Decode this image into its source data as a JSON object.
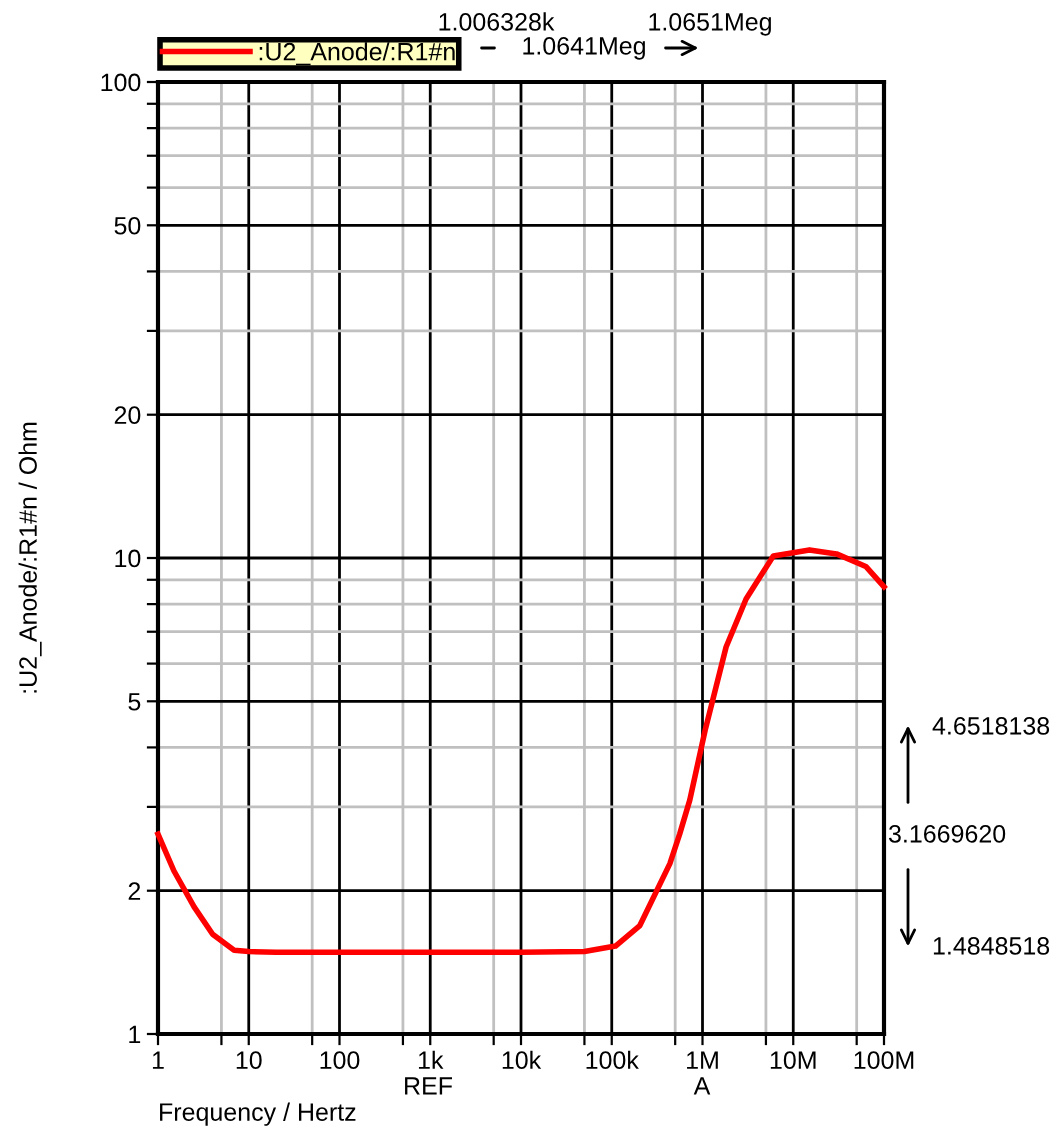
{
  "chart_data": {
    "type": "line",
    "xlabel": "Frequency / Hertz",
    "ylabel": ":U2_Anode/:R1#n / Ohm",
    "log": "xy",
    "grid": true,
    "legend": "top left",
    "marker": "none",
    "line_style": "solid",
    "xlim": [
      1,
      100000000
    ],
    "ylim": [
      1,
      100
    ],
    "xticks": [
      {
        "value": 1,
        "label": "1"
      },
      {
        "value": 5,
        "label": null
      },
      {
        "value": 10,
        "label": "10"
      },
      {
        "value": 50,
        "label": null
      },
      {
        "value": 100,
        "label": "100"
      },
      {
        "value": 500,
        "label": null
      },
      {
        "value": 1000,
        "label": "1k"
      },
      {
        "value": 5000,
        "label": null
      },
      {
        "value": 10000,
        "label": "10k"
      },
      {
        "value": 50000,
        "label": null
      },
      {
        "value": 100000,
        "label": "100k"
      },
      {
        "value": 500000,
        "label": null
      },
      {
        "value": 1000000,
        "label": "1M"
      },
      {
        "value": 5000000,
        "label": null
      },
      {
        "value": 10000000,
        "label": "10M"
      },
      {
        "value": 50000000,
        "label": null
      },
      {
        "value": 100000000,
        "label": "100M"
      }
    ],
    "yticks": [
      1,
      2,
      {
        "value": 3,
        "label": null
      },
      {
        "value": 4,
        "label": null
      },
      5,
      {
        "value": 6,
        "label": null
      },
      {
        "value": 7,
        "label": null
      },
      {
        "value": 8,
        "label": null
      },
      {
        "value": 9,
        "label": null
      },
      10,
      20,
      {
        "value": 30,
        "label": null
      },
      {
        "value": 40,
        "label": null
      },
      50,
      {
        "value": 60,
        "label": null
      },
      {
        "value": 70,
        "label": null
      },
      {
        "value": 80,
        "label": null
      },
      {
        "value": 90,
        "label": null
      },
      100
    ],
    "series": [
      {
        "name": ":U2_Anode/:R1#n",
        "color": "#ff0000",
        "x": [
          1,
          1.5,
          2.5,
          4,
          6.9,
          10,
          20,
          100,
          1000,
          10000,
          50000,
          110000,
          204000,
          437000,
          560000,
          724000,
          1070000,
          1820000,
          3020000,
          6030000,
          15100000,
          30000000,
          63000000,
          100000000
        ],
        "values": [
          2.63,
          2.2,
          1.85,
          1.62,
          1.5,
          1.49,
          1.485,
          1.485,
          1.485,
          1.485,
          1.49,
          1.53,
          1.69,
          2.28,
          2.63,
          3.1,
          4.35,
          6.5,
          8.2,
          10.1,
          10.4,
          10.2,
          9.6,
          8.7
        ]
      }
    ],
    "annotations": [
      "1.006328k",
      "1.0641Meg",
      "1.0651Meg",
      "4.6518138",
      "3.1669620",
      "1.4848518",
      "REF",
      "A"
    ]
  }
}
